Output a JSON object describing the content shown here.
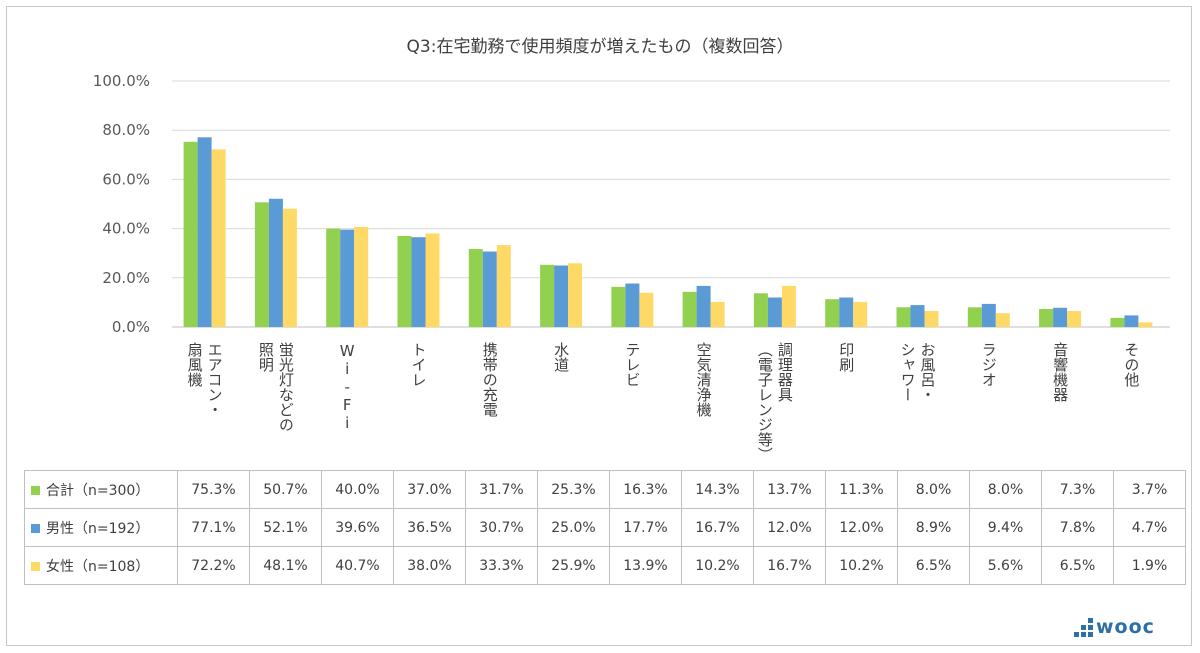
{
  "chart_data": {
    "type": "bar",
    "title": "Q3:在宅勤務で使用頻度が増えたもの（複数回答）",
    "categories": [
      "エアコン・\n扇風機",
      "蛍光灯などの\n照明",
      "Wi-Fi",
      "トイレ",
      "携帯の充電",
      "水道",
      "テレビ",
      "空気清浄機",
      "調理器具\n（電子レンジ等）",
      "印刷",
      "お風呂・\nシャワー",
      "ラジオ",
      "音響機器",
      "その他"
    ],
    "series": [
      {
        "name": "合計（n=300）",
        "color": "#92d050",
        "values": [
          75.3,
          50.7,
          40.0,
          37.0,
          31.7,
          25.3,
          16.3,
          14.3,
          13.7,
          11.3,
          8.0,
          8.0,
          7.3,
          3.7
        ]
      },
      {
        "name": "男性（n=192）",
        "color": "#5b9bd5",
        "values": [
          77.1,
          52.1,
          39.6,
          36.5,
          30.7,
          25.0,
          17.7,
          16.7,
          12.0,
          12.0,
          8.9,
          9.4,
          7.8,
          4.7
        ]
      },
      {
        "name": "女性（n=108）",
        "color": "#ffd966",
        "values": [
          72.2,
          48.1,
          40.7,
          38.0,
          33.3,
          25.9,
          13.9,
          10.2,
          16.7,
          10.2,
          6.5,
          5.6,
          6.5,
          1.9
        ]
      }
    ],
    "table_values": [
      [
        "75.3%",
        "50.7%",
        "40.0%",
        "37.0%",
        "31.7%",
        "25.3%",
        "16.3%",
        "14.3%",
        "13.7%",
        "11.3%",
        "8.0%",
        "8.0%",
        "7.3%",
        "3.7%"
      ],
      [
        "77.1%",
        "52.1%",
        "39.6%",
        "36.5%",
        "30.7%",
        "25.0%",
        "17.7%",
        "16.7%",
        "12.0%",
        "12.0%",
        "8.9%",
        "9.4%",
        "7.8%",
        "4.7%"
      ],
      [
        "72.2%",
        "48.1%",
        "40.7%",
        "38.0%",
        "33.3%",
        "25.9%",
        "13.9%",
        "10.2%",
        "16.7%",
        "10.2%",
        "6.5%",
        "5.6%",
        "6.5%",
        "1.9%"
      ]
    ],
    "yticks": [
      "0.0%",
      "20.0%",
      "40.0%",
      "60.0%",
      "80.0%",
      "100.0%"
    ],
    "ylim": [
      0,
      100
    ],
    "grid": true,
    "legend": "data-table"
  },
  "logo": {
    "text": "wooc"
  }
}
